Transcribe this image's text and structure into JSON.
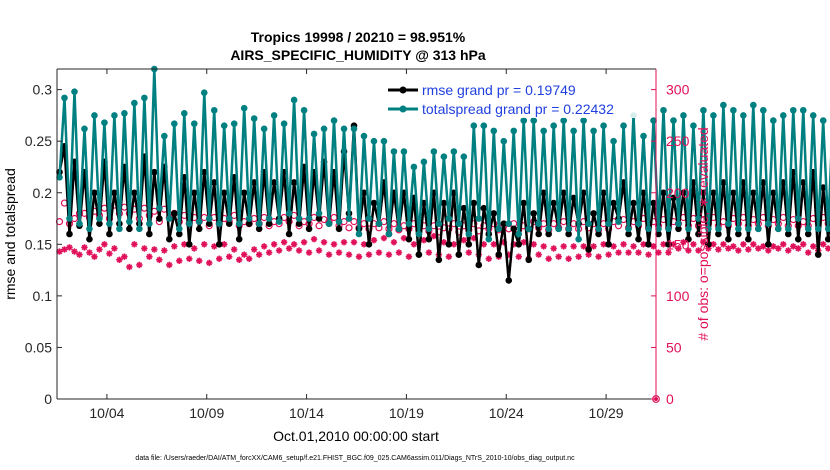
{
  "chart_data": {
    "type": "line",
    "title": "Tropics 19998 / 20210 = 98.951%",
    "subtitle": "AIRS_SPECIFIC_HUMIDITY @ 313 hPa",
    "xlabel": "Oct.01,2010 00:00:00 start",
    "ylabel_left": "rmse and totalspread",
    "ylabel_right": "# of obs: o=possible; ∗=evaluated",
    "footnote": "data file: /Users/raeder/DAI/ATM_forcXX/CAM6_setup/f.e21.FHIST_BGC.f09_025.CAM6assim.011/Diags_NTrS_2010-10/obs_diag_output.nc",
    "xlim": [
      1.5,
      31.5
    ],
    "ylim_left": [
      0,
      0.32
    ],
    "ylim_right": [
      0,
      320
    ],
    "xticks": [
      {
        "x": 4,
        "label": "10/04"
      },
      {
        "x": 9,
        "label": "10/09"
      },
      {
        "x": 14,
        "label": "10/14"
      },
      {
        "x": 19,
        "label": "10/19"
      },
      {
        "x": 24,
        "label": "10/24"
      },
      {
        "x": 29,
        "label": "10/29"
      }
    ],
    "yticks_left": [
      {
        "v": 0,
        "label": "0"
      },
      {
        "v": 0.05,
        "label": "0.05"
      },
      {
        "v": 0.1,
        "label": "0.1"
      },
      {
        "v": 0.15,
        "label": "0.15"
      },
      {
        "v": 0.2,
        "label": "0.2"
      },
      {
        "v": 0.25,
        "label": "0.25"
      },
      {
        "v": 0.3,
        "label": "0.3"
      }
    ],
    "yticks_right": [
      {
        "v": 0,
        "label": "0"
      },
      {
        "v": 50,
        "label": "50"
      },
      {
        "v": 100,
        "label": "100"
      },
      {
        "v": 150,
        "label": "150"
      },
      {
        "v": 200,
        "label": "200"
      },
      {
        "v": 250,
        "label": "250"
      },
      {
        "v": 300,
        "label": "300"
      }
    ],
    "x_start": 1.625,
    "x_step": 0.25,
    "series": [
      {
        "name": "rmse",
        "legend": "rmse grand pr = 0.19749",
        "color": "#000000",
        "values": [
          0.22,
          0.245,
          0.16,
          0.23,
          0.168,
          0.22,
          0.155,
          0.2,
          0.17,
          0.23,
          0.16,
          0.2,
          0.17,
          0.225,
          0.165,
          0.2,
          0.17,
          0.235,
          0.16,
          0.22,
          0.175,
          0.225,
          0.155,
          0.18,
          0.16,
          0.215,
          0.15,
          0.2,
          0.165,
          0.22,
          0.17,
          0.21,
          0.15,
          0.2,
          0.17,
          0.215,
          0.155,
          0.2,
          0.17,
          0.21,
          0.165,
          0.22,
          0.17,
          0.21,
          0.175,
          0.22,
          0.16,
          0.21,
          0.17,
          0.225,
          0.165,
          0.22,
          0.175,
          0.23,
          0.17,
          0.22,
          0.165,
          0.24,
          0.18,
          0.265,
          0.165,
          0.2,
          0.15,
          0.19,
          0.17,
          0.21,
          0.16,
          0.2,
          0.165,
          0.2,
          0.155,
          0.195,
          0.14,
          0.19,
          0.155,
          0.2,
          0.135,
          0.19,
          0.15,
          0.2,
          0.14,
          0.185,
          0.15,
          0.19,
          0.13,
          0.185,
          0.16,
          0.18,
          0.14,
          0.17,
          0.115,
          0.165,
          0.15,
          0.19,
          0.135,
          0.18,
          0.16,
          0.2,
          0.16,
          0.19,
          0.165,
          0.2,
          0.16,
          0.195,
          0.17,
          0.2,
          0.145,
          0.18,
          0.16,
          0.2,
          0.15,
          0.19,
          0.175,
          0.21,
          0.16,
          0.19,
          0.155,
          0.2,
          0.15,
          0.19,
          0.16,
          0.2,
          0.15,
          0.195,
          0.165,
          0.2,
          0.155,
          0.21,
          0.16,
          0.2,
          0.15,
          0.2,
          0.16,
          0.21,
          0.155,
          0.2,
          0.16,
          0.21,
          0.155,
          0.2,
          0.165,
          0.21,
          0.15,
          0.2,
          0.165,
          0.21,
          0.16,
          0.22,
          0.155,
          0.21,
          0.16,
          0.22,
          0.14,
          0.205,
          0.155,
          0.215,
          0.17,
          0.26,
          0.155,
          0.262
        ]
      },
      {
        "name": "totalspread",
        "legend": "totalspread grand pr = 0.22432",
        "color": "#008080",
        "values": [
          0.215,
          0.292,
          0.175,
          0.298,
          0.17,
          0.262,
          0.165,
          0.275,
          0.175,
          0.268,
          0.17,
          0.275,
          0.165,
          0.277,
          0.172,
          0.287,
          0.165,
          0.292,
          0.17,
          0.32,
          0.185,
          0.255,
          0.175,
          0.267,
          0.165,
          0.277,
          0.17,
          0.267,
          0.172,
          0.297,
          0.175,
          0.28,
          0.17,
          0.265,
          0.175,
          0.267,
          0.17,
          0.282,
          0.175,
          0.272,
          0.17,
          0.262,
          0.175,
          0.275,
          0.172,
          0.267,
          0.18,
          0.29,
          0.175,
          0.28,
          0.175,
          0.257,
          0.18,
          0.262,
          0.17,
          0.27,
          0.172,
          0.262,
          0.175,
          0.262,
          0.16,
          0.255,
          0.175,
          0.25,
          0.17,
          0.25,
          0.16,
          0.24,
          0.165,
          0.24,
          0.17,
          0.225,
          0.16,
          0.23,
          0.165,
          0.24,
          0.17,
          0.235,
          0.175,
          0.24,
          0.17,
          0.235,
          0.16,
          0.265,
          0.175,
          0.265,
          0.155,
          0.26,
          0.165,
          0.25,
          0.17,
          0.26,
          0.16,
          0.27,
          0.165,
          0.27,
          0.17,
          0.26,
          0.165,
          0.265,
          0.165,
          0.27,
          0.165,
          0.26,
          0.155,
          0.27,
          0.17,
          0.26,
          0.165,
          0.265,
          0.17,
          0.25,
          0.172,
          0.265,
          0.165,
          0.275,
          0.17,
          0.255,
          0.165,
          0.27,
          0.165,
          0.28,
          0.165,
          0.27,
          0.17,
          0.275,
          0.165,
          0.265,
          0.175,
          0.28,
          0.165,
          0.275,
          0.165,
          0.285,
          0.17,
          0.28,
          0.165,
          0.275,
          0.165,
          0.285,
          0.165,
          0.28,
          0.17,
          0.27,
          0.165,
          0.275,
          0.165,
          0.28,
          0.175,
          0.28,
          0.165,
          0.275,
          0.165,
          0.27,
          0.165,
          0.28,
          0.165,
          0.275,
          0.165,
          0.285
        ]
      },
      {
        "name": "obs possible",
        "color": "#e0105a",
        "axis": "right",
        "marker": "circle",
        "values": [
          172,
          190,
          170,
          175,
          180,
          180,
          176,
          182,
          178,
          185,
          175,
          188,
          180,
          186,
          180,
          184,
          175,
          185,
          178,
          182,
          172,
          184,
          176,
          180,
          172,
          178,
          170,
          176,
          172,
          176,
          168,
          176,
          170,
          175,
          172,
          178,
          168,
          172,
          170,
          175,
          170,
          176,
          168,
          172,
          170,
          176,
          172,
          178,
          168,
          172,
          170,
          176,
          168,
          174,
          172,
          176,
          168,
          172,
          166,
          172,
          166,
          170,
          165,
          170,
          166,
          172,
          165,
          170,
          164,
          168,
          165,
          170,
          164,
          168,
          163,
          168,
          162,
          166,
          165,
          170,
          162,
          168,
          164,
          170,
          163,
          168,
          165,
          170,
          164,
          168,
          165,
          170,
          164,
          168,
          165,
          172,
          166,
          170,
          164,
          170,
          166,
          172,
          165,
          170,
          165,
          172,
          166,
          170,
          164,
          170,
          165,
          172,
          168,
          174,
          166,
          172,
          168,
          175,
          166,
          172,
          168,
          174,
          166,
          172,
          170,
          176,
          168,
          175,
          168,
          174,
          170,
          176,
          168,
          172,
          168,
          175,
          170,
          176,
          168,
          174,
          170,
          176,
          168,
          174,
          170,
          176,
          168,
          174,
          168,
          172,
          168,
          175,
          172,
          176,
          170,
          178,
          172,
          190,
          170,
          180
        ]
      },
      {
        "name": "obs evaluated",
        "color": "#e0105a",
        "axis": "right",
        "marker": "star",
        "values": [
          143,
          145,
          147,
          143,
          140,
          147,
          142,
          138,
          145,
          150,
          141,
          146,
          135,
          138,
          128,
          150,
          130,
          146,
          138,
          145,
          135,
          144,
          130,
          148,
          134,
          150,
          136,
          146,
          134,
          150,
          132,
          148,
          136,
          150,
          138,
          145,
          135,
          140,
          136,
          145,
          140,
          148,
          142,
          150,
          144,
          152,
          146,
          150,
          144,
          152,
          142,
          155,
          144,
          152,
          140,
          150,
          142,
          152,
          140,
          152,
          138,
          150,
          140,
          154,
          142,
          156,
          140,
          152,
          142,
          156,
          138,
          150,
          140,
          154,
          142,
          158,
          140,
          152,
          138,
          150,
          140,
          154,
          142,
          156,
          140,
          150,
          136,
          150,
          138,
          152,
          140,
          150,
          138,
          152,
          136,
          150,
          140,
          148,
          136,
          146,
          138,
          148,
          136,
          148,
          138,
          148,
          140,
          148,
          138,
          150,
          140,
          148,
          142,
          150,
          142,
          148,
          142,
          150,
          140,
          148,
          142,
          150,
          142,
          150,
          146,
          152,
          144,
          150,
          144,
          152,
          146,
          150,
          145,
          150,
          146,
          148,
          144,
          150,
          145,
          150,
          146,
          148,
          144,
          148,
          146,
          150,
          144,
          148,
          146,
          150,
          142,
          148,
          144,
          150,
          146,
          148,
          142,
          145,
          144,
          146
        ]
      }
    ]
  }
}
